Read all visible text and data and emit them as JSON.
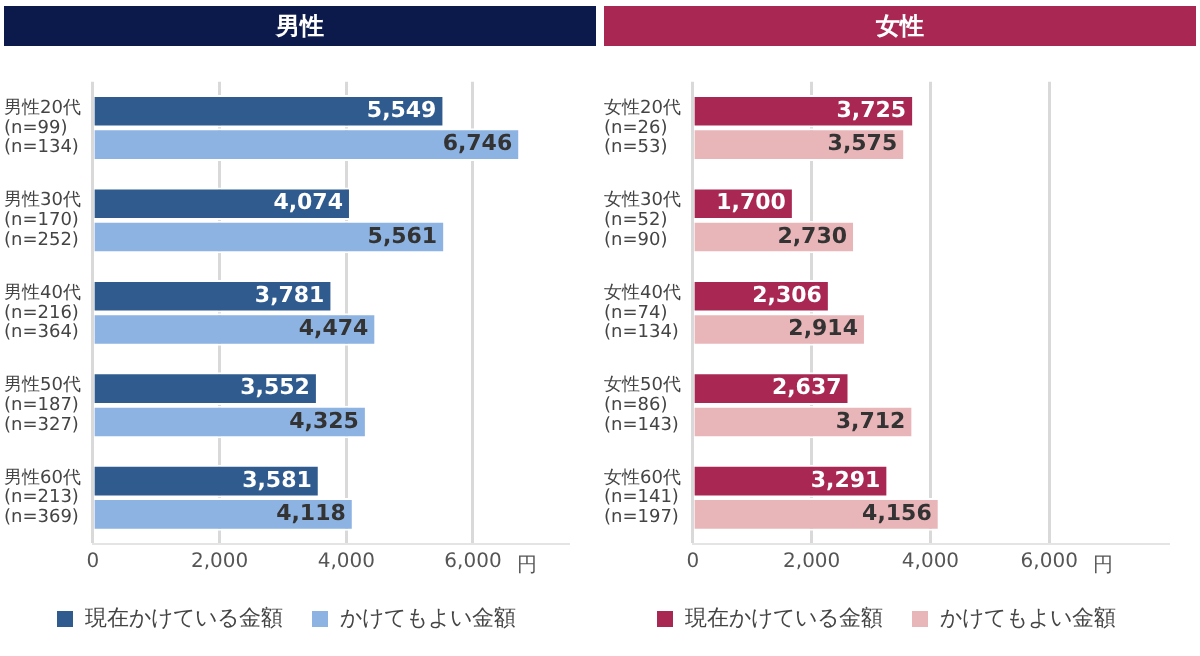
{
  "chart_data": [
    {
      "type": "bar",
      "orientation": "horizontal",
      "title": "男性",
      "categories": [
        "男性20代\n(n=99)\n(n=134)",
        "男性30代\n(n=170)\n(n=252)",
        "男性40代\n(n=216)\n(n=364)",
        "男性50代\n(n=187)\n(n=327)",
        "男性60代\n(n=213)\n(n=369)"
      ],
      "series": [
        {
          "name": "現在かけている金額",
          "color": "#2f5b8f",
          "values": [
            5549,
            4074,
            3781,
            3552,
            3581
          ],
          "value_labels": [
            "5,549",
            "4,074",
            "3,781",
            "3,552",
            "3,581"
          ]
        },
        {
          "name": "かけてもよい金額",
          "color": "#8db3e2",
          "values": [
            6746,
            5561,
            4474,
            4325,
            4118
          ],
          "value_labels": [
            "6,746",
            "5,561",
            "4,474",
            "4,325",
            "4,118"
          ]
        }
      ],
      "xlim": [
        0,
        7500
      ],
      "xticks": [
        0,
        {
          "value": 2000,
          "label": "2,000"
        },
        {
          "value": 4000,
          "label": "4,000"
        },
        {
          "value": 6000,
          "label": "6,000"
        }
      ],
      "xlabel": "円",
      "grid": "x",
      "legend": "bottom"
    },
    {
      "type": "bar",
      "orientation": "horizontal",
      "title": "女性",
      "categories": [
        "女性20代\n(n=26)\n(n=53)",
        "女性30代\n(n=52)\n(n=90)",
        "女性40代\n(n=74)\n(n=134)",
        "女性50代\n(n=86)\n(n=143)",
        "女性60代\n(n=141)\n(n=197)"
      ],
      "series": [
        {
          "name": "現在かけている金額",
          "color": "#a82853",
          "values": [
            3725,
            1700,
            2306,
            2637,
            3291
          ],
          "value_labels": [
            "3,725",
            "1,700",
            "2,306",
            "2,637",
            "3,291"
          ]
        },
        {
          "name": "かけてもよい金額",
          "color": "#e8b6b9",
          "values": [
            3575,
            2730,
            2914,
            3712,
            4156
          ],
          "value_labels": [
            "3,575",
            "2,730",
            "2,914",
            "3,712",
            "4,156"
          ]
        }
      ],
      "xlim": [
        0,
        8000
      ],
      "xticks": [
        0,
        {
          "value": 2000,
          "label": "2,000"
        },
        {
          "value": 4000,
          "label": "4,000"
        },
        {
          "value": 6000,
          "label": "6,000"
        }
      ],
      "xlabel": "円",
      "grid": "x",
      "legend": "bottom"
    }
  ]
}
